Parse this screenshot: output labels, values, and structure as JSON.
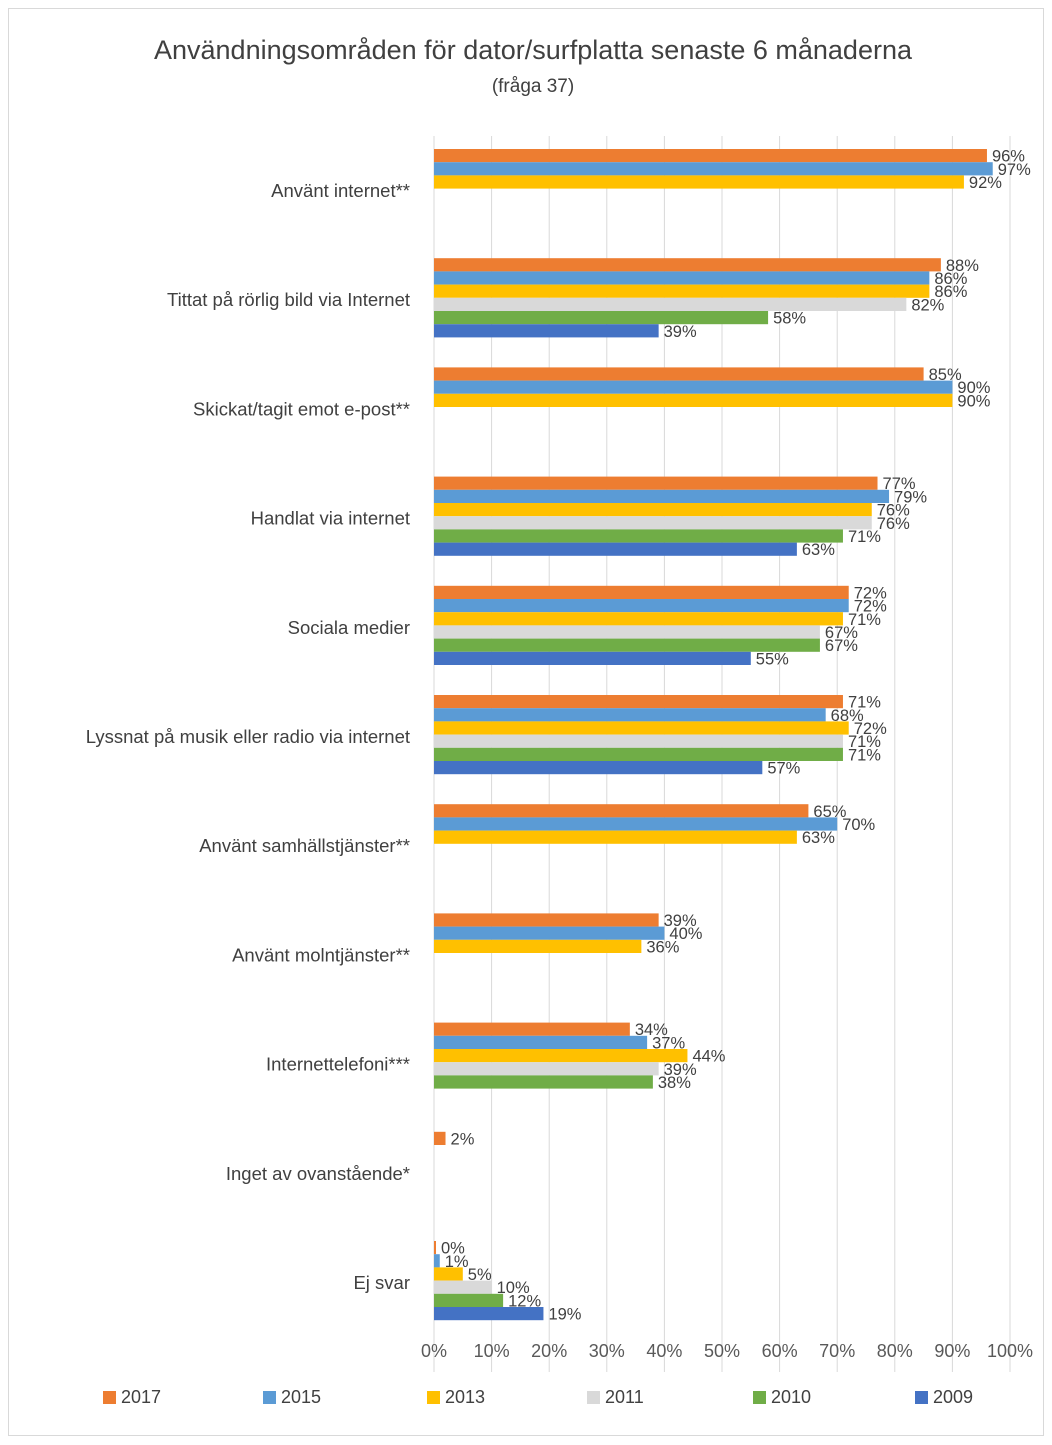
{
  "chart_data": {
    "type": "bar",
    "orientation": "horizontal",
    "title": "Användningsområden för dator/surfplatta senaste 6 månaderna",
    "subtitle": "(fråga 37)",
    "xlim": [
      0,
      100
    ],
    "x_ticks": [
      "0%",
      "10%",
      "20%",
      "30%",
      "40%",
      "50%",
      "60%",
      "70%",
      "80%",
      "90%",
      "100%"
    ],
    "grid": "vertical",
    "legend_position": "bottom",
    "series": [
      {
        "name": "2017",
        "color": "#ED7D31"
      },
      {
        "name": "2015",
        "color": "#5B9BD5"
      },
      {
        "name": "2013",
        "color": "#FFC000"
      },
      {
        "name": "2011",
        "color": "#D9D9D9"
      },
      {
        "name": "2010",
        "color": "#70AD47"
      },
      {
        "name": "2009",
        "color": "#4472C4"
      }
    ],
    "categories": [
      {
        "label": "Använt internet**",
        "bars": [
          {
            "series": "2017",
            "value": 96,
            "label": "96%"
          },
          {
            "series": "2015",
            "value": 97,
            "label": "97%"
          },
          {
            "series": "2013",
            "value": 92,
            "label": "92%"
          }
        ]
      },
      {
        "label": "Tittat på rörlig bild via Internet",
        "bars": [
          {
            "series": "2017",
            "value": 88,
            "label": "88%"
          },
          {
            "series": "2015",
            "value": 86,
            "label": "86%"
          },
          {
            "series": "2013",
            "value": 86,
            "label": "86%"
          },
          {
            "series": "2011",
            "value": 82,
            "label": "82%"
          },
          {
            "series": "2010",
            "value": 58,
            "label": "58%"
          },
          {
            "series": "2009",
            "value": 39,
            "label": "39%"
          }
        ]
      },
      {
        "label": "Skickat/tagit emot e-post**",
        "bars": [
          {
            "series": "2017",
            "value": 85,
            "label": "85%"
          },
          {
            "series": "2015",
            "value": 90,
            "label": "90%"
          },
          {
            "series": "2013",
            "value": 90,
            "label": "90%"
          }
        ]
      },
      {
        "label": "Handlat via internet",
        "bars": [
          {
            "series": "2017",
            "value": 77,
            "label": "77%"
          },
          {
            "series": "2015",
            "value": 79,
            "label": "79%"
          },
          {
            "series": "2013",
            "value": 76,
            "label": "76%"
          },
          {
            "series": "2011",
            "value": 76,
            "label": "76%"
          },
          {
            "series": "2010",
            "value": 71,
            "label": "71%"
          },
          {
            "series": "2009",
            "value": 63,
            "label": "63%"
          }
        ]
      },
      {
        "label": "Sociala medier",
        "bars": [
          {
            "series": "2017",
            "value": 72,
            "label": "72%"
          },
          {
            "series": "2015",
            "value": 72,
            "label": "72%"
          },
          {
            "series": "2013",
            "value": 71,
            "label": "71%"
          },
          {
            "series": "2011",
            "value": 67,
            "label": "67%"
          },
          {
            "series": "2010",
            "value": 67,
            "label": "67%"
          },
          {
            "series": "2009",
            "value": 55,
            "label": "55%"
          }
        ]
      },
      {
        "label": "Lyssnat på musik eller radio via internet",
        "bars": [
          {
            "series": "2017",
            "value": 71,
            "label": "71%"
          },
          {
            "series": "2015",
            "value": 68,
            "label": "68%"
          },
          {
            "series": "2013",
            "value": 72,
            "label": "72%"
          },
          {
            "series": "2011",
            "value": 71,
            "label": "71%"
          },
          {
            "series": "2010",
            "value": 71,
            "label": "71%"
          },
          {
            "series": "2009",
            "value": 57,
            "label": "57%"
          }
        ]
      },
      {
        "label": "Använt samhällstjänster**",
        "bars": [
          {
            "series": "2017",
            "value": 65,
            "label": "65%"
          },
          {
            "series": "2015",
            "value": 70,
            "label": "70%"
          },
          {
            "series": "2013",
            "value": 63,
            "label": "63%"
          }
        ]
      },
      {
        "label": "Använt molntjänster**",
        "bars": [
          {
            "series": "2017",
            "value": 39,
            "label": "39%"
          },
          {
            "series": "2015",
            "value": 40,
            "label": "40%"
          },
          {
            "series": "2013",
            "value": 36,
            "label": "36%"
          }
        ]
      },
      {
        "label": "Internettelefoni***",
        "bars": [
          {
            "series": "2017",
            "value": 34,
            "label": "34%"
          },
          {
            "series": "2015",
            "value": 37,
            "label": "37%"
          },
          {
            "series": "2013",
            "value": 44,
            "label": "44%"
          },
          {
            "series": "2011",
            "value": 39,
            "label": "39%"
          },
          {
            "series": "2010",
            "value": 38,
            "label": "38%"
          }
        ]
      },
      {
        "label": "Inget av ovanstående*",
        "bars": [
          {
            "series": "2017",
            "value": 2,
            "label": "2%"
          }
        ]
      },
      {
        "label": "Ej svar",
        "bars": [
          {
            "series": "2017",
            "value": 0,
            "label": "0%"
          },
          {
            "series": "2015",
            "value": 1,
            "label": "1%"
          },
          {
            "series": "2013",
            "value": 5,
            "label": "5%"
          },
          {
            "series": "2011",
            "value": 10,
            "label": "10%"
          },
          {
            "series": "2010",
            "value": 12,
            "label": "12%"
          },
          {
            "series": "2009",
            "value": 19,
            "label": "19%"
          }
        ]
      }
    ]
  }
}
